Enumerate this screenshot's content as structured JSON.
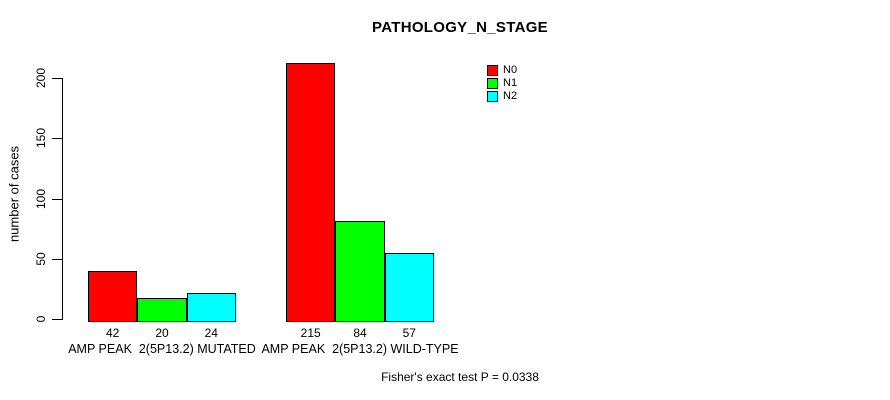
{
  "figure": {
    "background": "#ffffff",
    "axis_color": "#000000"
  },
  "chart_data": {
    "type": "bar",
    "title": "PATHOLOGY_N_STAGE",
    "xlabel": "",
    "ylabel": "number of cases",
    "categories": [
      "AMP PEAK  2(5P13.2) MUTATED",
      "AMP PEAK  2(5P13.2) WILD-TYPE"
    ],
    "series": [
      {
        "name": "N0",
        "color": "#FF0000",
        "values": [
          42,
          215
        ]
      },
      {
        "name": "N1",
        "color": "#00FF00",
        "values": [
          20,
          84
        ]
      },
      {
        "name": "N2",
        "color": "#00FFFF",
        "values": [
          24,
          57
        ]
      }
    ],
    "bar_value_labels": true,
    "bar_outline_color": "#000000",
    "yticks": [
      0,
      50,
      100,
      150,
      200
    ],
    "ylim": [
      0,
      215
    ],
    "grid": false,
    "legend_position": "top-right-of-plot",
    "annotation": "Fisher's exact test P = 0.0338"
  }
}
